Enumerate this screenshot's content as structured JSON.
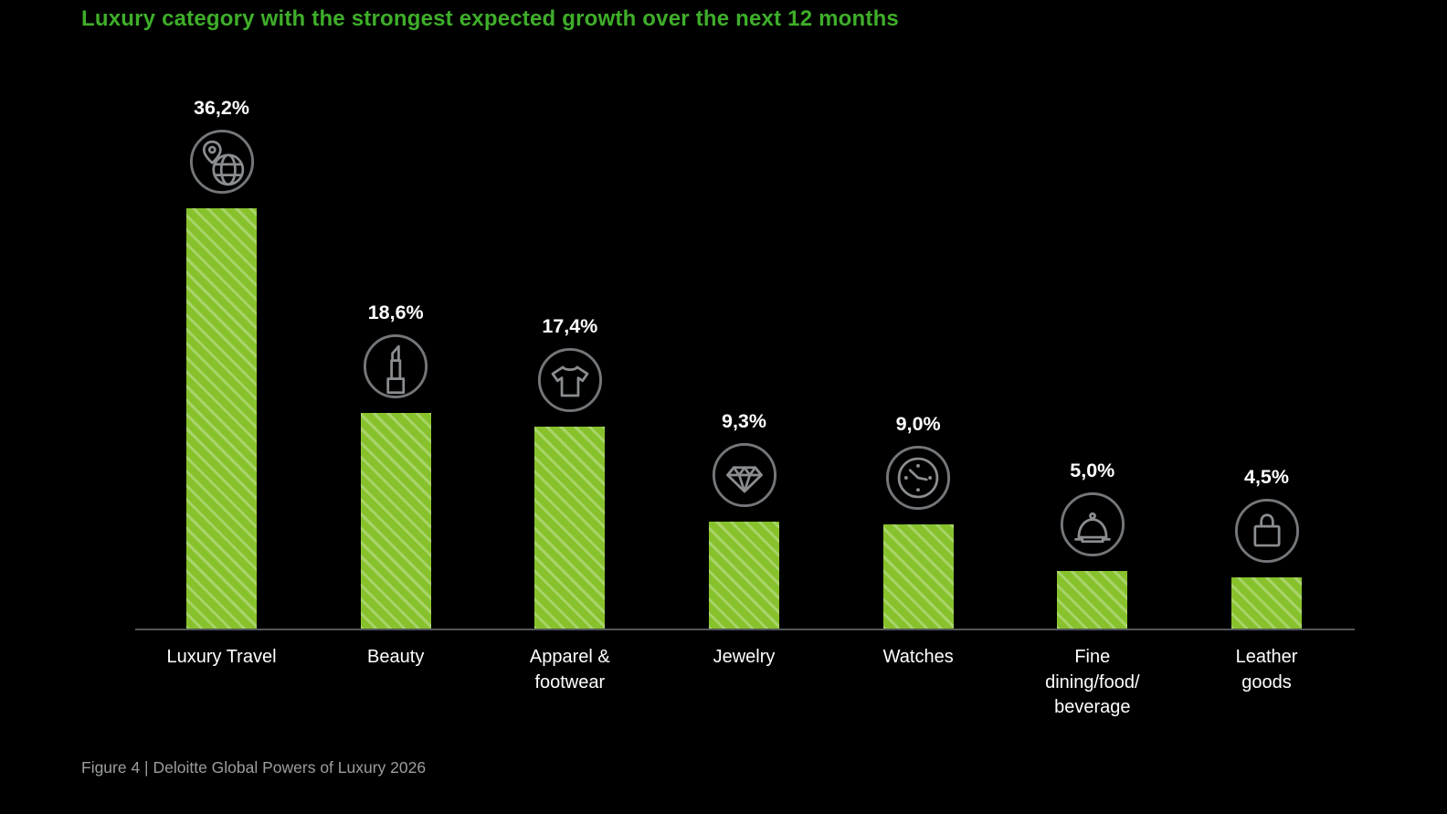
{
  "page": {
    "title": "Luxury category with the strongest expected growth over the next 12 months",
    "caption": "Figure 4 | Deloitte Global Powers of Luxury 2026"
  },
  "colors": {
    "background": "#000000",
    "title_green": "#3fae2a",
    "bar_green": "#87c22d",
    "bar_stripe_light": "#a9d469",
    "text_white": "#ffffff",
    "icon_gray": "#8b8e91",
    "icon_ring_gray": "#74777a",
    "axis_gray": "#53575a",
    "caption_gray": "#9b9ea0"
  },
  "chart_data": {
    "type": "bar",
    "title": "Luxury category with the strongest expected growth over the next 12 months",
    "categories": [
      "Luxury Travel",
      "Beauty",
      "Apparel & footwear",
      "Jewelry",
      "Watches",
      "Fine dining/food/beverage",
      "Leather goods"
    ],
    "display_categories": [
      "Luxury Travel",
      "Beauty",
      "Apparel &\nfootwear",
      "Jewelry",
      "Watches",
      "Fine\ndining/food/\nbeverage",
      "Leather\ngoods"
    ],
    "values": [
      36.2,
      18.6,
      17.4,
      9.3,
      9.0,
      5.0,
      4.5
    ],
    "value_labels": [
      "36,2%",
      "18,6%",
      "17,4%",
      "9,3%",
      "9,0%",
      "5,0%",
      "4,5%"
    ],
    "unit": "%",
    "decimal_separator": ",",
    "icons": [
      "globe-location-icon",
      "lipstick-icon",
      "tshirt-icon",
      "diamond-icon",
      "watch-icon",
      "cloche-icon",
      "handbag-icon"
    ],
    "bar_pattern": "diagonal-hatch",
    "ylim": [
      0,
      40
    ],
    "xlabel": "",
    "ylabel": "",
    "grid": false,
    "legend": "none",
    "caption": "Figure 4 | Deloitte Global Powers of Luxury 2026"
  }
}
